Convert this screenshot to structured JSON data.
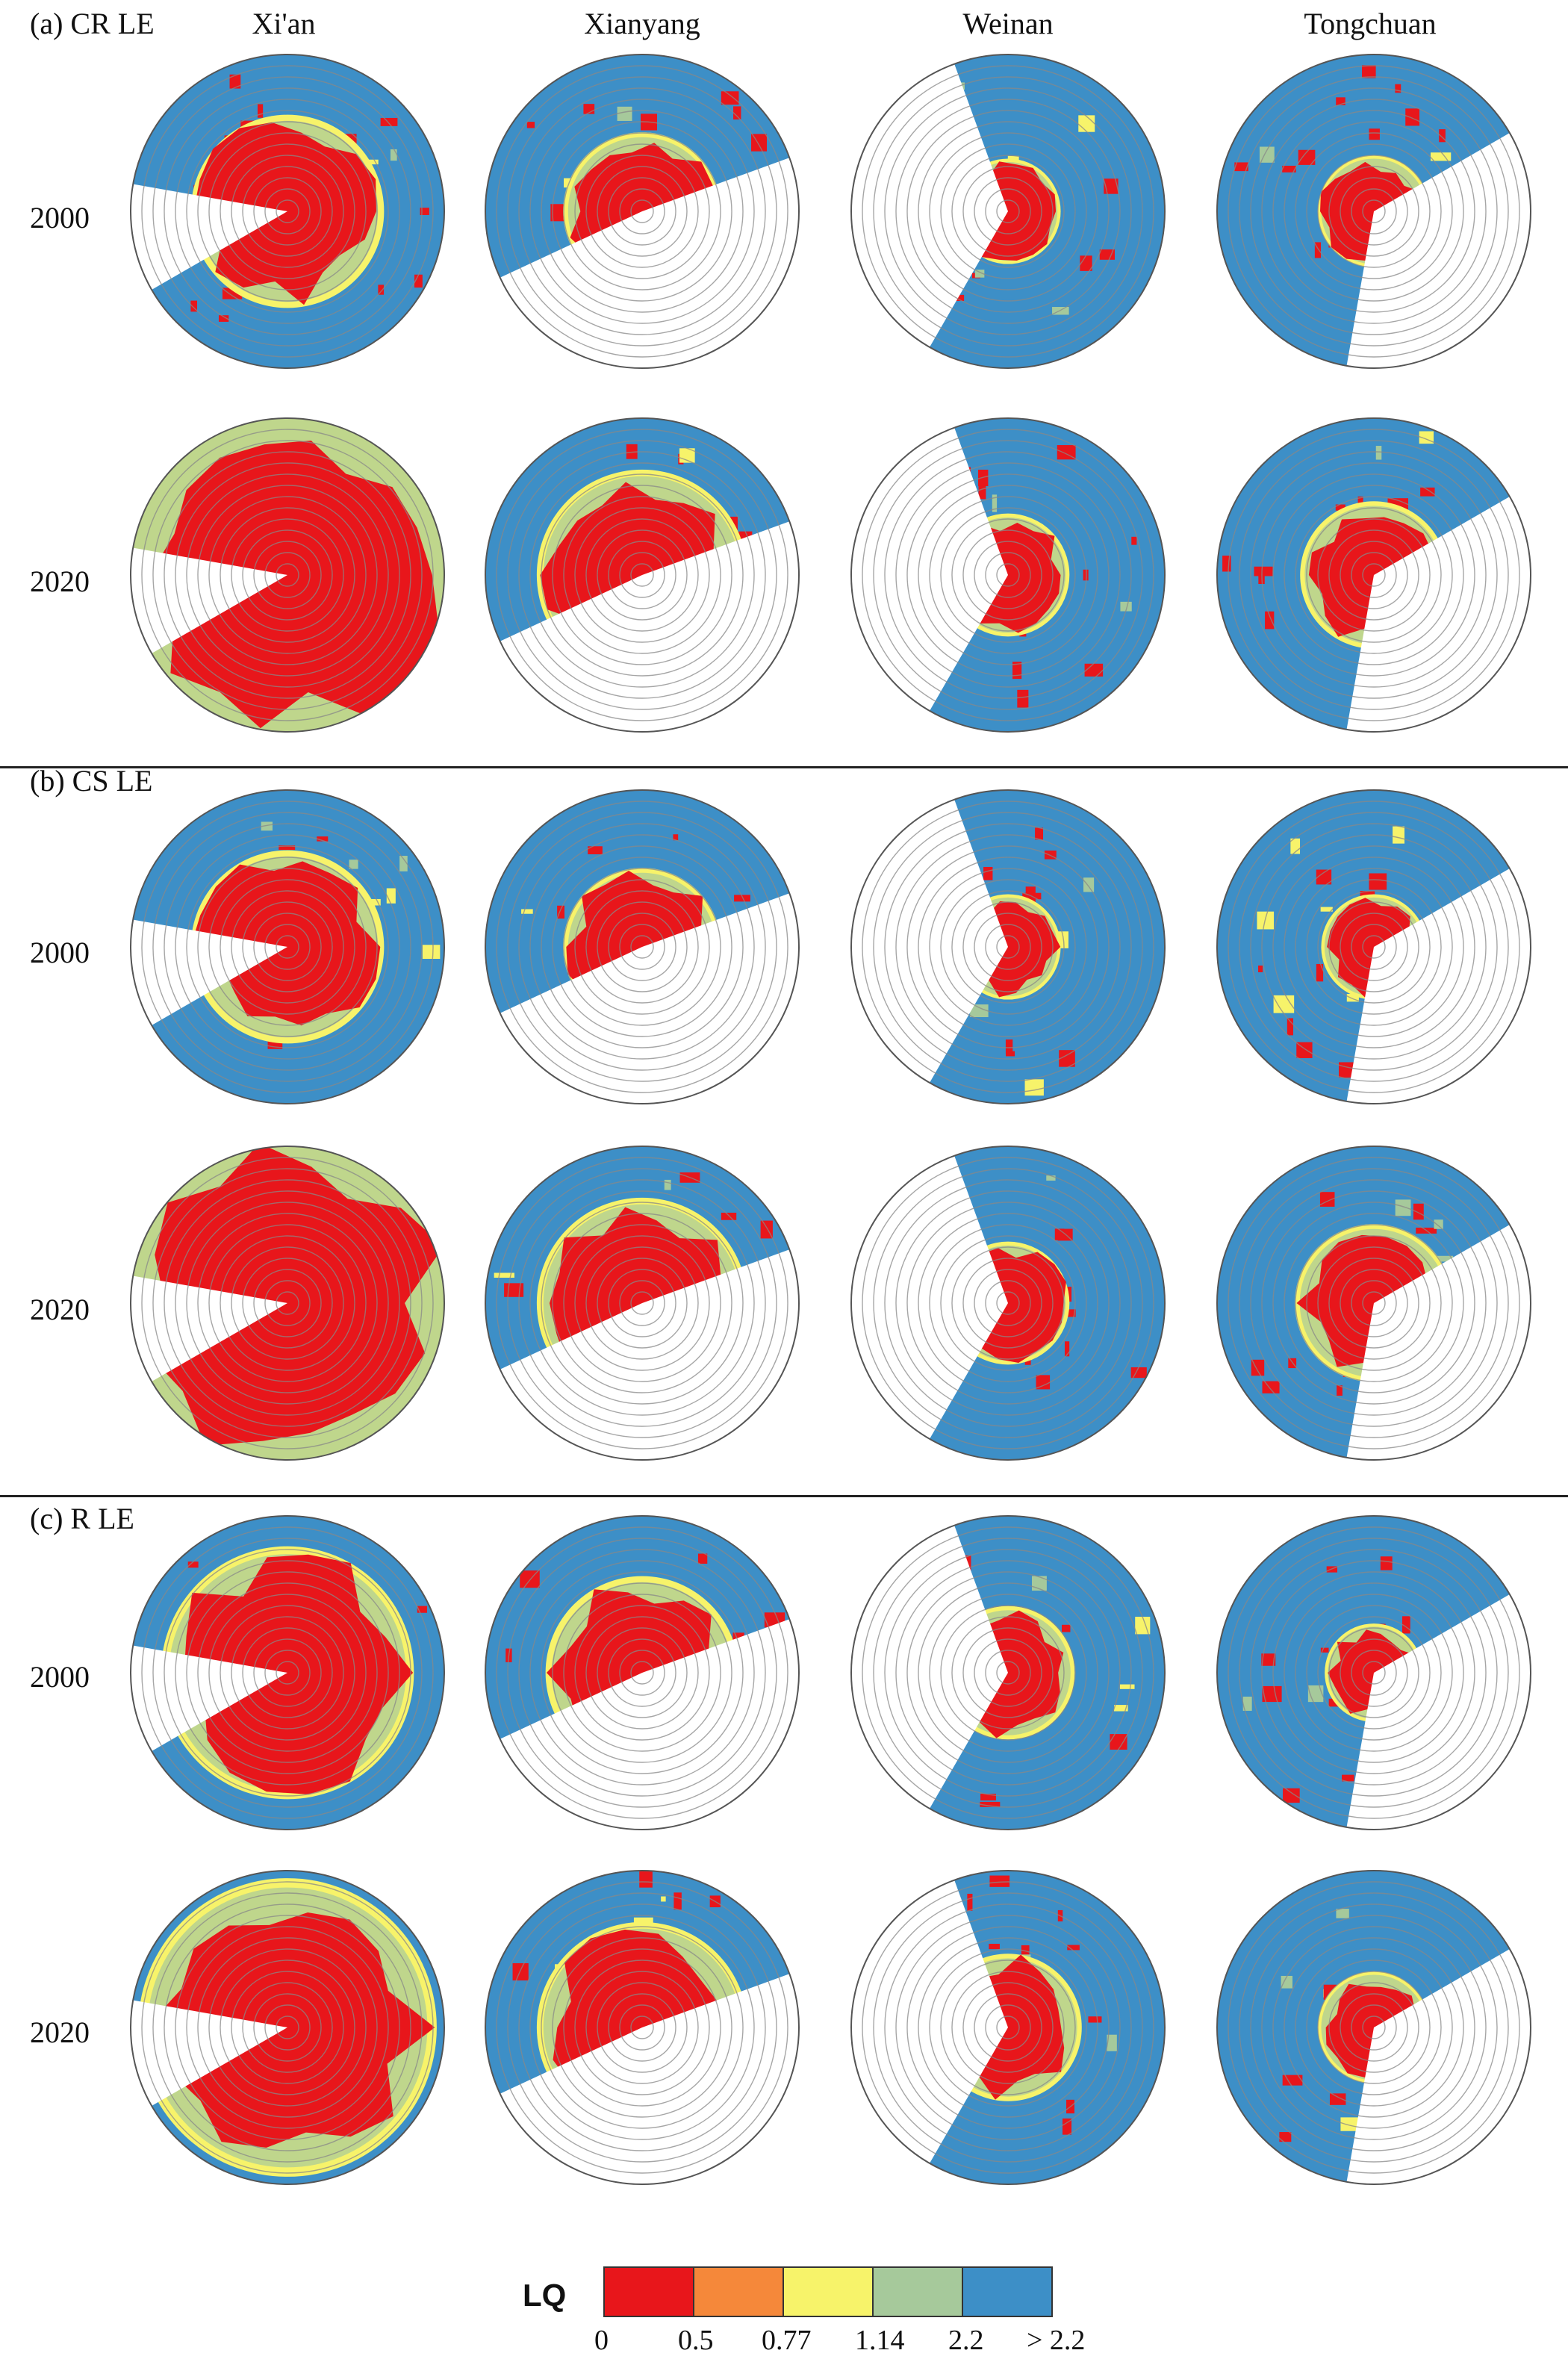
{
  "columns": [
    "Xi'an",
    "Xianyang",
    "Weinan",
    "Tongchuan"
  ],
  "panels": [
    {
      "label": "(a) CR LE",
      "years": [
        "2000",
        "2020"
      ]
    },
    {
      "label": "(b) CS LE",
      "years": [
        "2000",
        "2020"
      ]
    },
    {
      "label": "(c) R  LE",
      "years": [
        "2000",
        "2020"
      ]
    }
  ],
  "legend": {
    "title": "LQ",
    "ticks": [
      "0",
      "0.5",
      "0.77",
      "1.14",
      "2.2",
      "> 2.2"
    ],
    "classes": [
      {
        "range": "0–0.5",
        "color": "#e8161b"
      },
      {
        "range": "0.5–0.77",
        "color": "#f5883a"
      },
      {
        "range": "0.77–1.14",
        "color": "#f7f36a"
      },
      {
        "range": "1.14–2.2",
        "color": "#a6c99b"
      },
      {
        "range": "> 2.2",
        "color": "#3d8fc7"
      }
    ]
  },
  "colors": {
    "urban_core": "#e8161b",
    "background": "#3d8fc7",
    "transition": "#f7f36a",
    "green": "#a6c99b",
    "ring_stroke": "#888888"
  }
}
